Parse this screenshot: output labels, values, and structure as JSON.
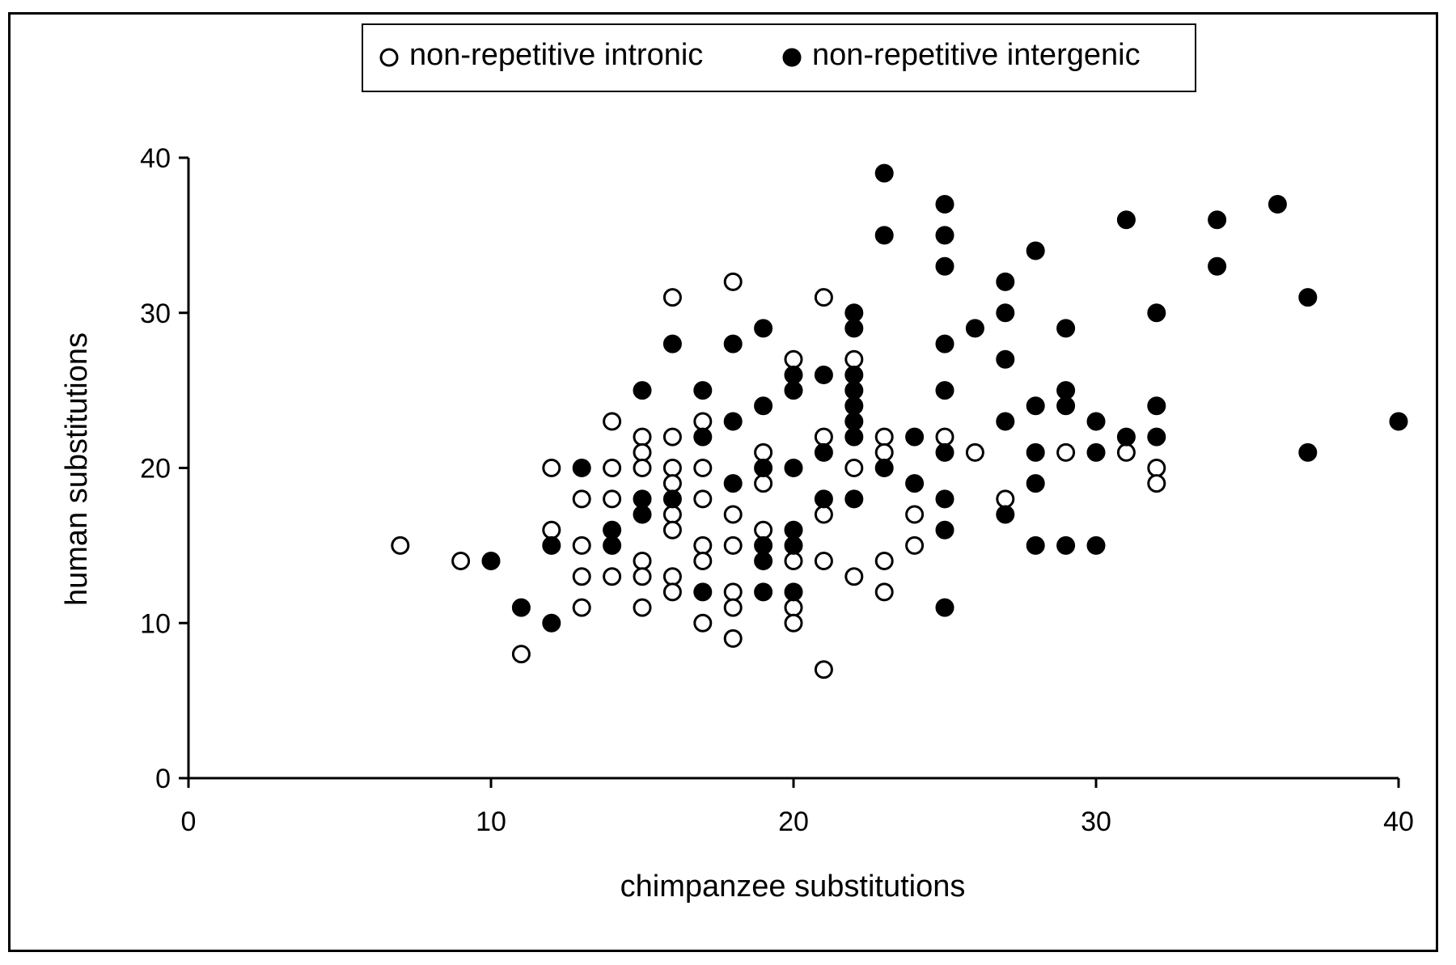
{
  "chart_data": {
    "type": "scatter",
    "title": "",
    "xlabel": "chimpanzee substitutions",
    "ylabel": "human substitutions",
    "xlim": [
      0,
      40
    ],
    "ylim": [
      0,
      40
    ],
    "xticks": [
      0,
      10,
      20,
      30,
      40
    ],
    "yticks": [
      0,
      10,
      20,
      30,
      40
    ],
    "grid": false,
    "legend_position": "top-center",
    "series": [
      {
        "name": "non-repetitive intronic",
        "marker": "open-circle",
        "color": "#000000",
        "points": [
          [
            7,
            15
          ],
          [
            9,
            14
          ],
          [
            11,
            8
          ],
          [
            12,
            20
          ],
          [
            12,
            16
          ],
          [
            13,
            18
          ],
          [
            13,
            15
          ],
          [
            13,
            13
          ],
          [
            13,
            11
          ],
          [
            14,
            23
          ],
          [
            14,
            20
          ],
          [
            14,
            18
          ],
          [
            14,
            13
          ],
          [
            15,
            22
          ],
          [
            15,
            21
          ],
          [
            15,
            20
          ],
          [
            15,
            14
          ],
          [
            15,
            13
          ],
          [
            15,
            11
          ],
          [
            16,
            31
          ],
          [
            16,
            22
          ],
          [
            16,
            20
          ],
          [
            16,
            19
          ],
          [
            16,
            17
          ],
          [
            16,
            16
          ],
          [
            16,
            13
          ],
          [
            16,
            12
          ],
          [
            17,
            23
          ],
          [
            17,
            20
          ],
          [
            17,
            18
          ],
          [
            17,
            15
          ],
          [
            17,
            14
          ],
          [
            17,
            10
          ],
          [
            18,
            32
          ],
          [
            18,
            17
          ],
          [
            18,
            15
          ],
          [
            18,
            12
          ],
          [
            18,
            11
          ],
          [
            18,
            9
          ],
          [
            19,
            21
          ],
          [
            19,
            19
          ],
          [
            19,
            16
          ],
          [
            20,
            27
          ],
          [
            20,
            14
          ],
          [
            20,
            11
          ],
          [
            20,
            10
          ],
          [
            21,
            31
          ],
          [
            21,
            22
          ],
          [
            21,
            17
          ],
          [
            21,
            14
          ],
          [
            21,
            7
          ],
          [
            22,
            27
          ],
          [
            22,
            20
          ],
          [
            22,
            13
          ],
          [
            23,
            22
          ],
          [
            23,
            21
          ],
          [
            23,
            14
          ],
          [
            23,
            12
          ],
          [
            24,
            17
          ],
          [
            24,
            15
          ],
          [
            25,
            22
          ],
          [
            26,
            21
          ],
          [
            27,
            18
          ],
          [
            29,
            21
          ],
          [
            31,
            21
          ],
          [
            32,
            20
          ],
          [
            32,
            19
          ]
        ]
      },
      {
        "name": "non-repetitive intergenic",
        "marker": "filled-circle",
        "color": "#000000",
        "points": [
          [
            10,
            14
          ],
          [
            11,
            11
          ],
          [
            12,
            15
          ],
          [
            12,
            10
          ],
          [
            13,
            20
          ],
          [
            14,
            16
          ],
          [
            14,
            15
          ],
          [
            15,
            25
          ],
          [
            15,
            18
          ],
          [
            15,
            17
          ],
          [
            16,
            28
          ],
          [
            16,
            18
          ],
          [
            17,
            25
          ],
          [
            17,
            22
          ],
          [
            17,
            12
          ],
          [
            18,
            28
          ],
          [
            18,
            23
          ],
          [
            18,
            19
          ],
          [
            19,
            29
          ],
          [
            19,
            24
          ],
          [
            19,
            20
          ],
          [
            19,
            15
          ],
          [
            19,
            14
          ],
          [
            19,
            12
          ],
          [
            20,
            26
          ],
          [
            20,
            25
          ],
          [
            20,
            20
          ],
          [
            20,
            16
          ],
          [
            20,
            15
          ],
          [
            20,
            12
          ],
          [
            21,
            26
          ],
          [
            21,
            21
          ],
          [
            21,
            18
          ],
          [
            22,
            30
          ],
          [
            22,
            29
          ],
          [
            22,
            26
          ],
          [
            22,
            25
          ],
          [
            22,
            24
          ],
          [
            22,
            23
          ],
          [
            22,
            22
          ],
          [
            22,
            18
          ],
          [
            23,
            39
          ],
          [
            23,
            35
          ],
          [
            23,
            20
          ],
          [
            24,
            22
          ],
          [
            24,
            19
          ],
          [
            25,
            37
          ],
          [
            25,
            35
          ],
          [
            25,
            33
          ],
          [
            25,
            28
          ],
          [
            25,
            25
          ],
          [
            25,
            21
          ],
          [
            25,
            18
          ],
          [
            25,
            16
          ],
          [
            25,
            11
          ],
          [
            26,
            29
          ],
          [
            27,
            32
          ],
          [
            27,
            30
          ],
          [
            27,
            27
          ],
          [
            27,
            23
          ],
          [
            27,
            17
          ],
          [
            28,
            34
          ],
          [
            28,
            24
          ],
          [
            28,
            21
          ],
          [
            28,
            19
          ],
          [
            28,
            15
          ],
          [
            29,
            29
          ],
          [
            29,
            25
          ],
          [
            29,
            24
          ],
          [
            29,
            15
          ],
          [
            30,
            23
          ],
          [
            30,
            21
          ],
          [
            30,
            15
          ],
          [
            31,
            36
          ],
          [
            31,
            22
          ],
          [
            32,
            30
          ],
          [
            32,
            24
          ],
          [
            32,
            22
          ],
          [
            34,
            36
          ],
          [
            34,
            33
          ],
          [
            36,
            37
          ],
          [
            37,
            31
          ],
          [
            37,
            21
          ],
          [
            40,
            23
          ]
        ]
      }
    ]
  }
}
